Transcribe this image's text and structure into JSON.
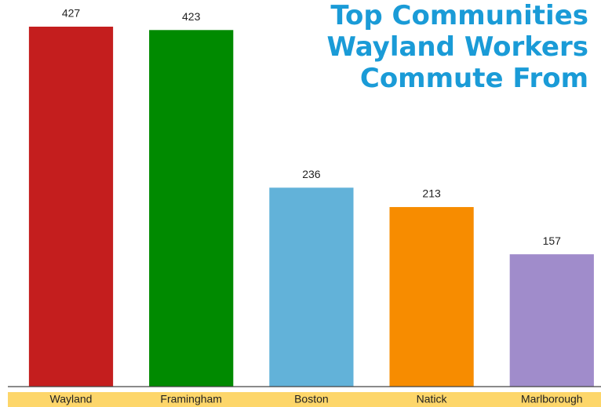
{
  "chart_data": {
    "type": "bar",
    "title": "Top Communities Wayland Workers Commute From",
    "categories": [
      "Wayland",
      "Framingham",
      "Boston",
      "Natick",
      "Marlborough"
    ],
    "values": [
      427,
      423,
      236,
      213,
      157
    ],
    "colors": [
      "#c41e1e",
      "#008a00",
      "#62b2d9",
      "#f78c00",
      "#a08ccb"
    ]
  }
}
